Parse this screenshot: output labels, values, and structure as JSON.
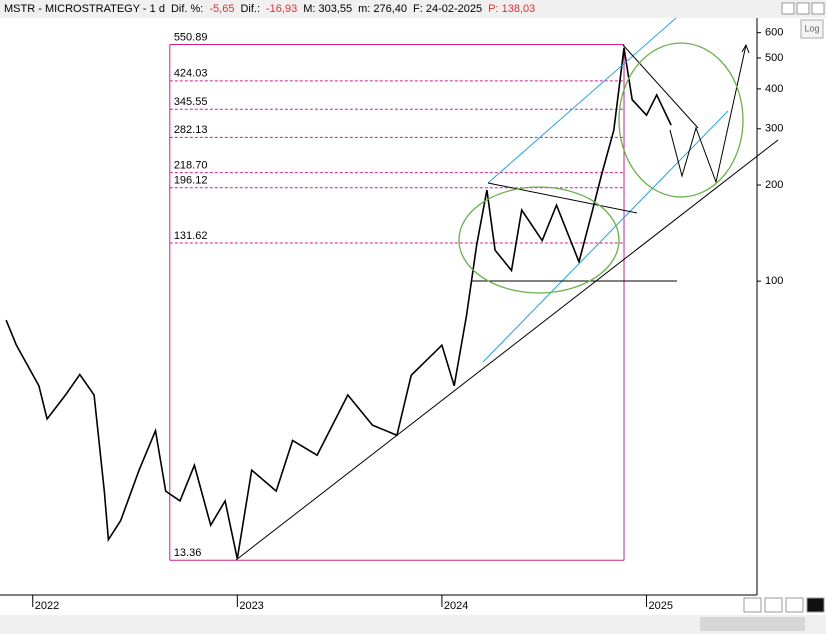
{
  "header": [
    {
      "text": "MSTR - MICROSTRATEGY -  1 d",
      "color": "#000000"
    },
    {
      "text": "Dif. %:",
      "color": "#000000"
    },
    {
      "text": "-5,65",
      "color": "#e03030"
    },
    {
      "text": "Dif.:",
      "color": "#000000"
    },
    {
      "text": "-16,93",
      "color": "#e03030"
    },
    {
      "text": "M: 303,55",
      "color": "#000000"
    },
    {
      "text": "m: 276,40",
      "color": "#000000"
    },
    {
      "text": "F: 24-02-2025",
      "color": "#000000"
    },
    {
      "text": "P: 138,03",
      "color": "#e03030"
    }
  ],
  "log_button": "Log",
  "chart_data": {
    "type": "line",
    "log_scale": true,
    "color": "#000000",
    "x": [
      2021.87,
      2021.92,
      2022.03,
      2022.07,
      2022.16,
      2022.23,
      2022.3,
      2022.35,
      2022.37,
      2022.43,
      2022.52,
      2022.6,
      2022.65,
      2022.72,
      2022.79,
      2022.87,
      2022.94,
      2023.0,
      2023.07,
      2023.19,
      2023.27,
      2023.39,
      2023.54,
      2023.66,
      2023.78,
      2023.85,
      2024.0,
      2024.06,
      2024.12,
      2024.17,
      2024.22,
      2024.26,
      2024.34,
      2024.39,
      2024.49,
      2024.56,
      2024.67,
      2024.73,
      2024.78,
      2024.84,
      2024.89,
      2024.93,
      2025.0,
      2025.05,
      2025.12
    ],
    "values": [
      75.5,
      63,
      47,
      37,
      44,
      51,
      44,
      22,
      15.5,
      17.8,
      25.6,
      34,
      22,
      20.5,
      26.5,
      17.2,
      20.5,
      13.5,
      25.6,
      22,
      31.7,
      28.5,
      44,
      35.4,
      32.9,
      50.7,
      63,
      47,
      78,
      130,
      193,
      125,
      108,
      167,
      134,
      173,
      115,
      161,
      215,
      297,
      537,
      370,
      331,
      383,
      308
    ],
    "xlim": [
      2021.84,
      2025.54
    ],
    "xticks": [
      2022,
      2023,
      2024,
      2025
    ],
    "ylim": [
      10.4,
      667
    ],
    "yticks": [
      600,
      500,
      400,
      300,
      200,
      100
    ],
    "fib_color": "#d0208a",
    "fib_start": 2022.67,
    "fib_end": 2024.89,
    "fib_levels": [
      550.89,
      424.03,
      345.55,
      282.13,
      {
        "value": 218.7,
        "label": "218.70"
      },
      196.12,
      131.62,
      13.36
    ]
  }
}
